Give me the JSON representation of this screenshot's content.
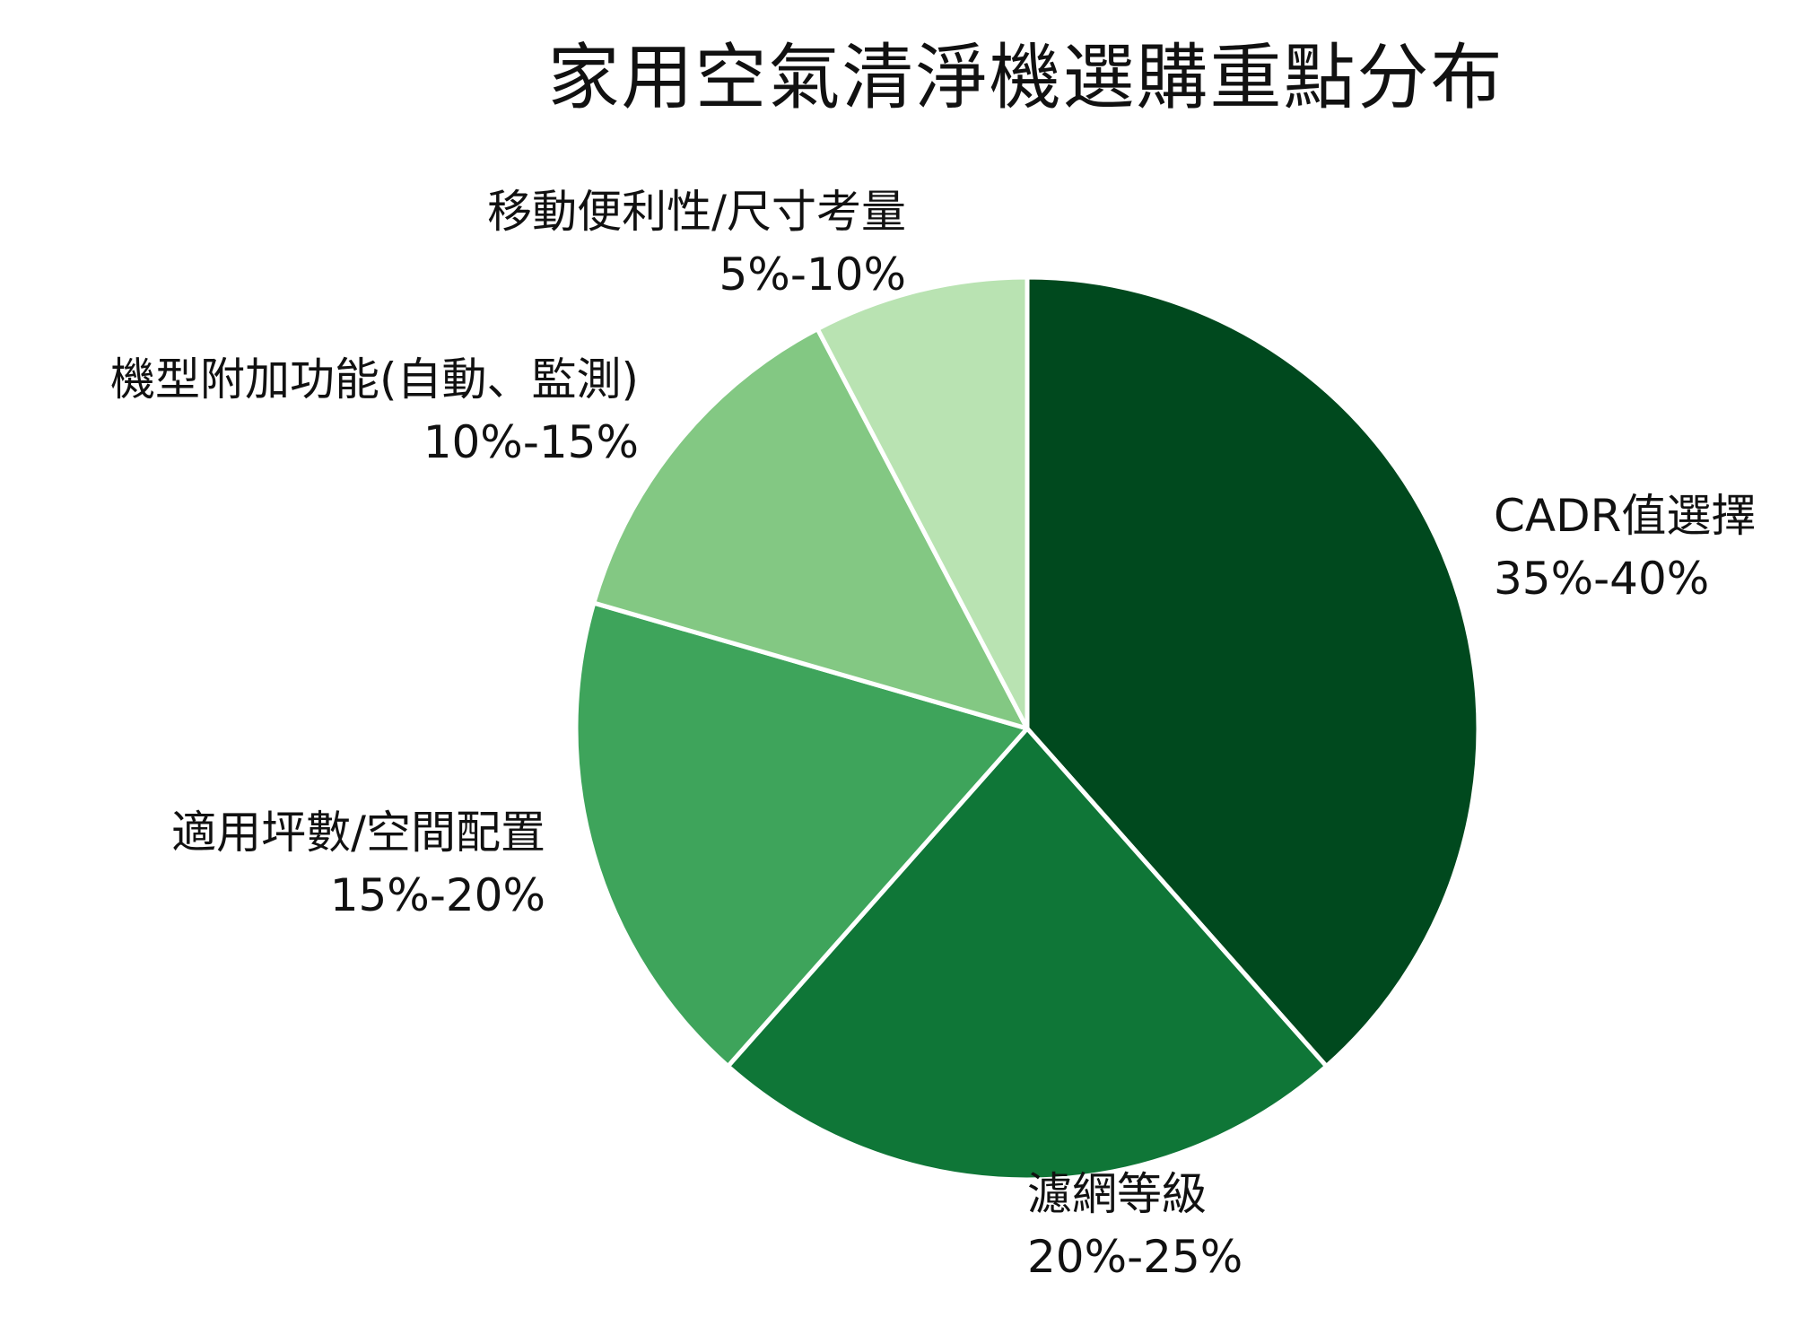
{
  "chart_data": {
    "type": "pie",
    "title": "家用空氣清淨機選購重點分布",
    "start_angle_deg": 0,
    "direction": "clockwise",
    "slices": [
      {
        "label": "CADR值選擇",
        "range_text": "35%-40%",
        "value": 37.5,
        "color": "#00491e"
      },
      {
        "label": "濾網等級",
        "range_text": "20%-25%",
        "value": 22.5,
        "color": "#0f7637"
      },
      {
        "label": "適用坪數/空間配置",
        "range_text": "15%-20%",
        "value": 17.5,
        "color": "#3ea45b"
      },
      {
        "label": "機型附加功能(自動、監測)",
        "range_text": "10%-15%",
        "value": 12.5,
        "color": "#83c883"
      },
      {
        "label": "移動便利性/尺寸考量",
        "range_text": "5%-10%",
        "value": 7.5,
        "color": "#b9e3b2"
      }
    ],
    "legend": "none"
  }
}
